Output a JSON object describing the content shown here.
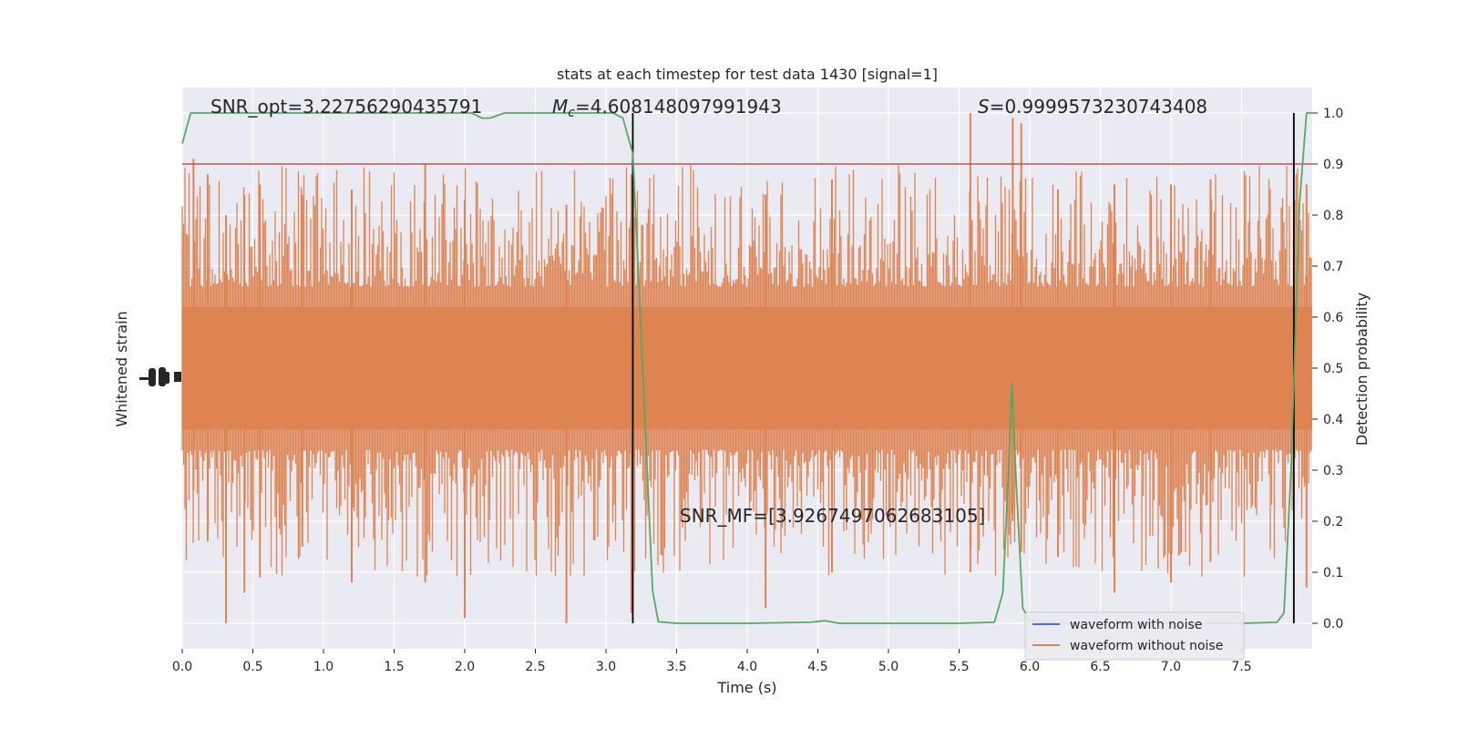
{
  "chart_data": {
    "type": "line",
    "title": "stats at each timestep for test data 1430 [signal=1]",
    "xlabel": "Time (s)",
    "ylabel_left": "Whitened strain",
    "ylabel_right": "Detection probability",
    "xlim": [
      0.0,
      8.0
    ],
    "ylim_right": [
      -0.05,
      1.05
    ],
    "x_ticks": [
      "0.0",
      "0.5",
      "1.0",
      "1.5",
      "2.0",
      "2.5",
      "3.0",
      "3.5",
      "4.0",
      "4.5",
      "5.0",
      "5.5",
      "6.0",
      "6.5",
      "7.0",
      "7.5"
    ],
    "y_ticks_right": [
      "0.0",
      "0.1",
      "0.2",
      "0.3",
      "0.4",
      "0.5",
      "0.6",
      "0.7",
      "0.8",
      "0.9",
      "1.0"
    ],
    "grid": true,
    "legend_position": "lower-right",
    "threshold": {
      "value": 0.9,
      "color": "#c44e52"
    },
    "vlines": [
      3.19,
      7.87
    ],
    "annotations": {
      "snr_opt": "SNR_opt=3.22756290435791",
      "mc_sym": "M",
      "mc_sub": "c",
      "mc_val": "=4.608148097991943",
      "s_sym": "S",
      "s_val": "=0.9999573230743408",
      "snr_mf": "SNR_MF=[3.9267497062683105]"
    },
    "series": [
      {
        "name": "waveform with noise",
        "color": "#4c72b0",
        "values": []
      },
      {
        "name": "waveform without noise",
        "color": "#dd8452",
        "values": []
      },
      {
        "color": "#55a868",
        "x": [
          0.0,
          0.06,
          0.2,
          1.0,
          1.8,
          2.05,
          2.12,
          2.18,
          2.28,
          2.5,
          3.0,
          3.05,
          3.12,
          3.19,
          3.26,
          3.33,
          3.37,
          3.5,
          4.0,
          4.45,
          4.55,
          4.65,
          5.0,
          5.5,
          5.75,
          5.81,
          5.85,
          5.875,
          5.9,
          5.95,
          6.0,
          6.2,
          7.0,
          7.5,
          7.75,
          7.8,
          7.85,
          7.91,
          7.96,
          8.0
        ],
        "y": [
          0.94,
          1.0,
          1.0,
          1.0,
          1.0,
          1.0,
          0.99,
          0.99,
          1.0,
          1.0,
          1.0,
          1.0,
          0.99,
          0.92,
          0.5,
          0.065,
          0.003,
          0.0,
          0.0,
          0.002,
          0.005,
          0.0,
          0.0,
          0.0,
          0.002,
          0.06,
          0.3,
          0.47,
          0.3,
          0.03,
          0.005,
          0.0,
          0.0,
          0.0,
          0.002,
          0.02,
          0.3,
          0.82,
          1.0,
          1.0
        ]
      }
    ]
  }
}
